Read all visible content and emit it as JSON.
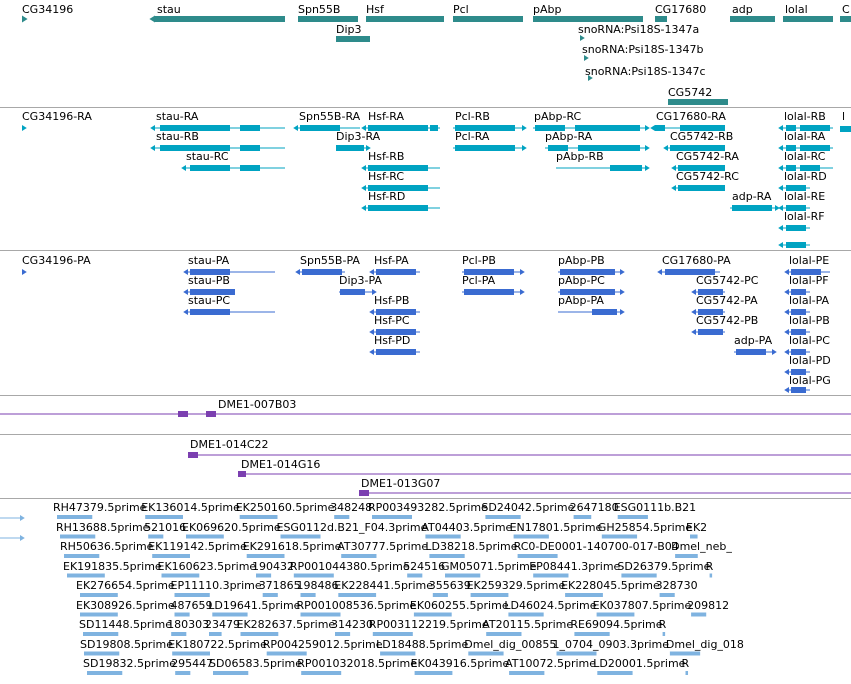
{
  "colors": {
    "gene": "#2e8b8b",
    "transcript": "#00a3c2",
    "protein": "#3a6bd1",
    "clone": "#7b3fb0",
    "est": "#7fb3e0",
    "separator": "#a8a8a8"
  },
  "gene_track": {
    "features": [
      {
        "label": "CG34196",
        "glyph": "arrow-left"
      },
      {
        "label": "stau",
        "glyph": "bar"
      },
      {
        "label": "Spn55B",
        "glyph": "bar"
      },
      {
        "label": "Dip3",
        "glyph": "bar"
      },
      {
        "label": "Hsf",
        "glyph": "bar"
      },
      {
        "label": "Pcl",
        "glyph": "bar"
      },
      {
        "label": "pAbp",
        "glyph": "bar"
      },
      {
        "label": "snoRNA:Psi18S-1347a",
        "glyph": "arrow-right"
      },
      {
        "label": "snoRNA:Psi18S-1347b",
        "glyph": "arrow-right"
      },
      {
        "label": "snoRNA:Psi18S-1347c",
        "glyph": "arrow-right"
      },
      {
        "label": "CG17680",
        "glyph": "bar"
      },
      {
        "label": "CG5742",
        "glyph": "bar"
      },
      {
        "label": "adp",
        "glyph": "bar"
      },
      {
        "label": "lolal",
        "glyph": "bar"
      },
      {
        "label": "C",
        "glyph": "bar"
      }
    ]
  },
  "transcript_track": {
    "features": [
      {
        "label": "CG34196-RA"
      },
      {
        "label": "stau-RA"
      },
      {
        "label": "stau-RB"
      },
      {
        "label": "stau-RC"
      },
      {
        "label": "Spn55B-RA"
      },
      {
        "label": "Dip3-RA"
      },
      {
        "label": "Hsf-RA"
      },
      {
        "label": "Hsf-RB"
      },
      {
        "label": "Hsf-RC"
      },
      {
        "label": "Hsf-RD"
      },
      {
        "label": "Pcl-RB"
      },
      {
        "label": "Pcl-RA"
      },
      {
        "label": "pAbp-RC"
      },
      {
        "label": "pAbp-RA"
      },
      {
        "label": "pAbp-RB"
      },
      {
        "label": "CG17680-RA"
      },
      {
        "label": "CG5742-RB"
      },
      {
        "label": "CG5742-RA"
      },
      {
        "label": "CG5742-RC"
      },
      {
        "label": "adp-RA"
      },
      {
        "label": "lolal-RB"
      },
      {
        "label": "lolal-RA"
      },
      {
        "label": "lolal-RC"
      },
      {
        "label": "lolal-RD"
      },
      {
        "label": "lolal-RE"
      },
      {
        "label": "lolal-RF"
      },
      {
        "label": "l"
      }
    ]
  },
  "protein_track": {
    "features": [
      {
        "label": "CG34196-PA"
      },
      {
        "label": "stau-PA"
      },
      {
        "label": "stau-PB"
      },
      {
        "label": "stau-PC"
      },
      {
        "label": "Spn55B-PA"
      },
      {
        "label": "Dip3-PA"
      },
      {
        "label": "Hsf-PA"
      },
      {
        "label": "Hsf-PB"
      },
      {
        "label": "Hsf-PC"
      },
      {
        "label": "Hsf-PD"
      },
      {
        "label": "Pcl-PB"
      },
      {
        "label": "Pcl-PA"
      },
      {
        "label": "pAbp-PB"
      },
      {
        "label": "pAbp-PC"
      },
      {
        "label": "pAbp-PA"
      },
      {
        "label": "CG17680-PA"
      },
      {
        "label": "CG5742-PC"
      },
      {
        "label": "CG5742-PA"
      },
      {
        "label": "CG5742-PB"
      },
      {
        "label": "adp-PA"
      },
      {
        "label": "lolal-PE"
      },
      {
        "label": "lolal-PF"
      },
      {
        "label": "lolal-PA"
      },
      {
        "label": "lolal-PB"
      },
      {
        "label": "lolal-PC"
      },
      {
        "label": "lolal-PD"
      },
      {
        "label": "lolal-PG"
      }
    ]
  },
  "clone_track_1": {
    "features": [
      {
        "label": "DME1-007B03"
      }
    ]
  },
  "clone_track_2": {
    "features": [
      {
        "label": "DME1-014C22"
      },
      {
        "label": "DME1-014G16"
      },
      {
        "label": "DME1-013G07"
      }
    ]
  },
  "est_track": {
    "rows": [
      [
        "RH47379.5prime",
        "EK136014.5prime",
        "EK250160.5prime",
        "348248",
        "RP003493282.5prime",
        "SD24042.5prime",
        "2647180",
        "ESG0111b.B21"
      ],
      [
        "RH13688.5prime",
        "521016",
        "EK069620.5prime",
        "ESG0112d.B21_F04.3prime",
        "AT04403.5prime",
        "EN17801.5prime",
        "GH25854.5prime",
        "EK2"
      ],
      [
        "RH50636.5prime",
        "EK119142.5prime",
        "EK291618.5prime",
        "AT30777.5prime",
        "LD38218.5prime",
        "RC0-DE0001-140700-017-B04",
        "Dmel_neb_"
      ],
      [
        "EK191835.5prime",
        "EK160623.5prime",
        "190432",
        "RP001044380.5prime",
        "524516",
        "GM05071.5prime",
        "EP08441.3prime",
        "SD26379.5prime",
        "R"
      ],
      [
        "EK276654.5prime",
        "EP11110.3prime",
        "371865",
        "198486",
        "EK228441.5prime",
        "355639",
        "EK259329.5prime",
        "EK228045.5prime",
        "328730"
      ],
      [
        "EK308926.5prime",
        "487659",
        "LD19641.5prime",
        "RP001008536.5prime",
        "EK060255.5prime",
        "LD46024.5prime",
        "EK037807.5prime",
        "209812"
      ],
      [
        "SD11448.5prime",
        "180303",
        "23479",
        "EK282637.5prime",
        "314230",
        "RP003112219.5prime",
        "AT20115.5prime",
        "RE69094.5prime",
        "R"
      ],
      [
        "SD19808.5prime",
        "EK180722.5prime",
        "RP004259012.5prime",
        "LD18488.5prime",
        "Dmel_dig_00855",
        "1_0704_0903.3prime",
        "Dmel_dig_018"
      ],
      [
        "SD19832.5prime",
        "295447",
        "SD06583.5prime",
        "RP001032018.5prime",
        "EK043916.5prime",
        "AT10072.5prime",
        "LD20001.5prime",
        "R"
      ]
    ]
  }
}
